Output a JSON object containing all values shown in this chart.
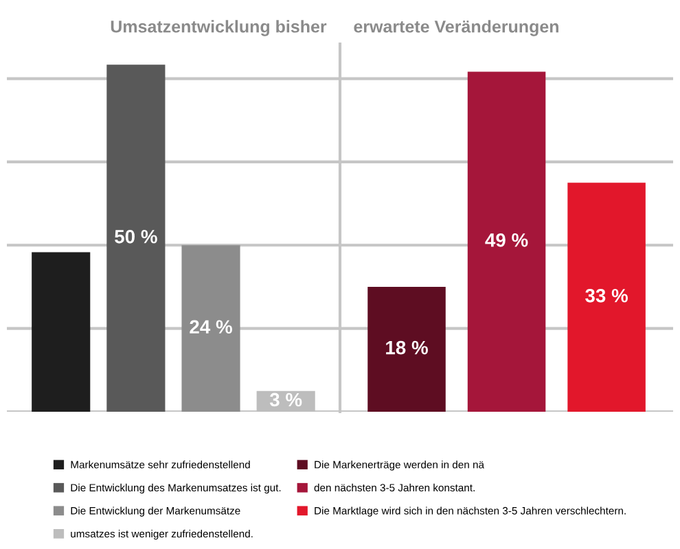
{
  "chart_data": [
    {
      "type": "bar",
      "title": "Umsatzentwicklung bisher",
      "categories": [
        null
      ],
      "series": [
        {
          "name": "Markenumsätze sehr zufriedenstellend",
          "color": "#1e1e1e",
          "values": [
            23
          ],
          "value_labels": [
            null
          ]
        },
        {
          "name": "Die Entwicklung des Markenumsatzes ist gut.",
          "color": "#595959",
          "values": [
            50
          ],
          "value_labels": [
            "50 %"
          ]
        },
        {
          "name": "Die Entwicklung der Markenumsätze",
          "color": "#8c8c8c",
          "values": [
            24
          ],
          "value_labels": [
            "24 %"
          ]
        },
        {
          "name": "umsatzes ist weniger zufriedenstellend.",
          "color": "#bdbdbd",
          "values": [
            3
          ],
          "value_labels": [
            "3 %"
          ]
        }
      ],
      "ylim": [
        0,
        53
      ],
      "yticks": [
        {
          "value": 0,
          "label": null
        },
        {
          "value": 12,
          "label": null
        },
        {
          "value": 24,
          "label": null
        },
        {
          "value": 36,
          "label": null
        },
        {
          "value": 48,
          "label": null
        }
      ],
      "grid": "y",
      "legend": "bottom"
    },
    {
      "type": "bar",
      "title": "erwartete Veränderungen",
      "categories": [
        null
      ],
      "series": [
        {
          "name": "Die Markenerträge werden in den nä",
          "color": "#5e0d22",
          "values": [
            18
          ],
          "value_labels": [
            "18 %"
          ]
        },
        {
          "name": "den nächsten 3-5 Jahren konstant.",
          "color": "#a5163a",
          "values": [
            49
          ],
          "value_labels": [
            "49 %"
          ]
        },
        {
          "name": "Die Marktlage wird sich in den nächsten 3-5 Jahren verschlechtern.",
          "color": "#e2172b",
          "values": [
            33
          ],
          "value_labels": [
            "33 %"
          ]
        }
      ],
      "ylim": [
        0,
        53
      ],
      "yticks": [
        {
          "value": 0,
          "label": null
        },
        {
          "value": 12,
          "label": null
        },
        {
          "value": 24,
          "label": null
        },
        {
          "value": 36,
          "label": null
        },
        {
          "value": 48,
          "label": null
        }
      ],
      "grid": "y",
      "legend": "bottom"
    }
  ]
}
